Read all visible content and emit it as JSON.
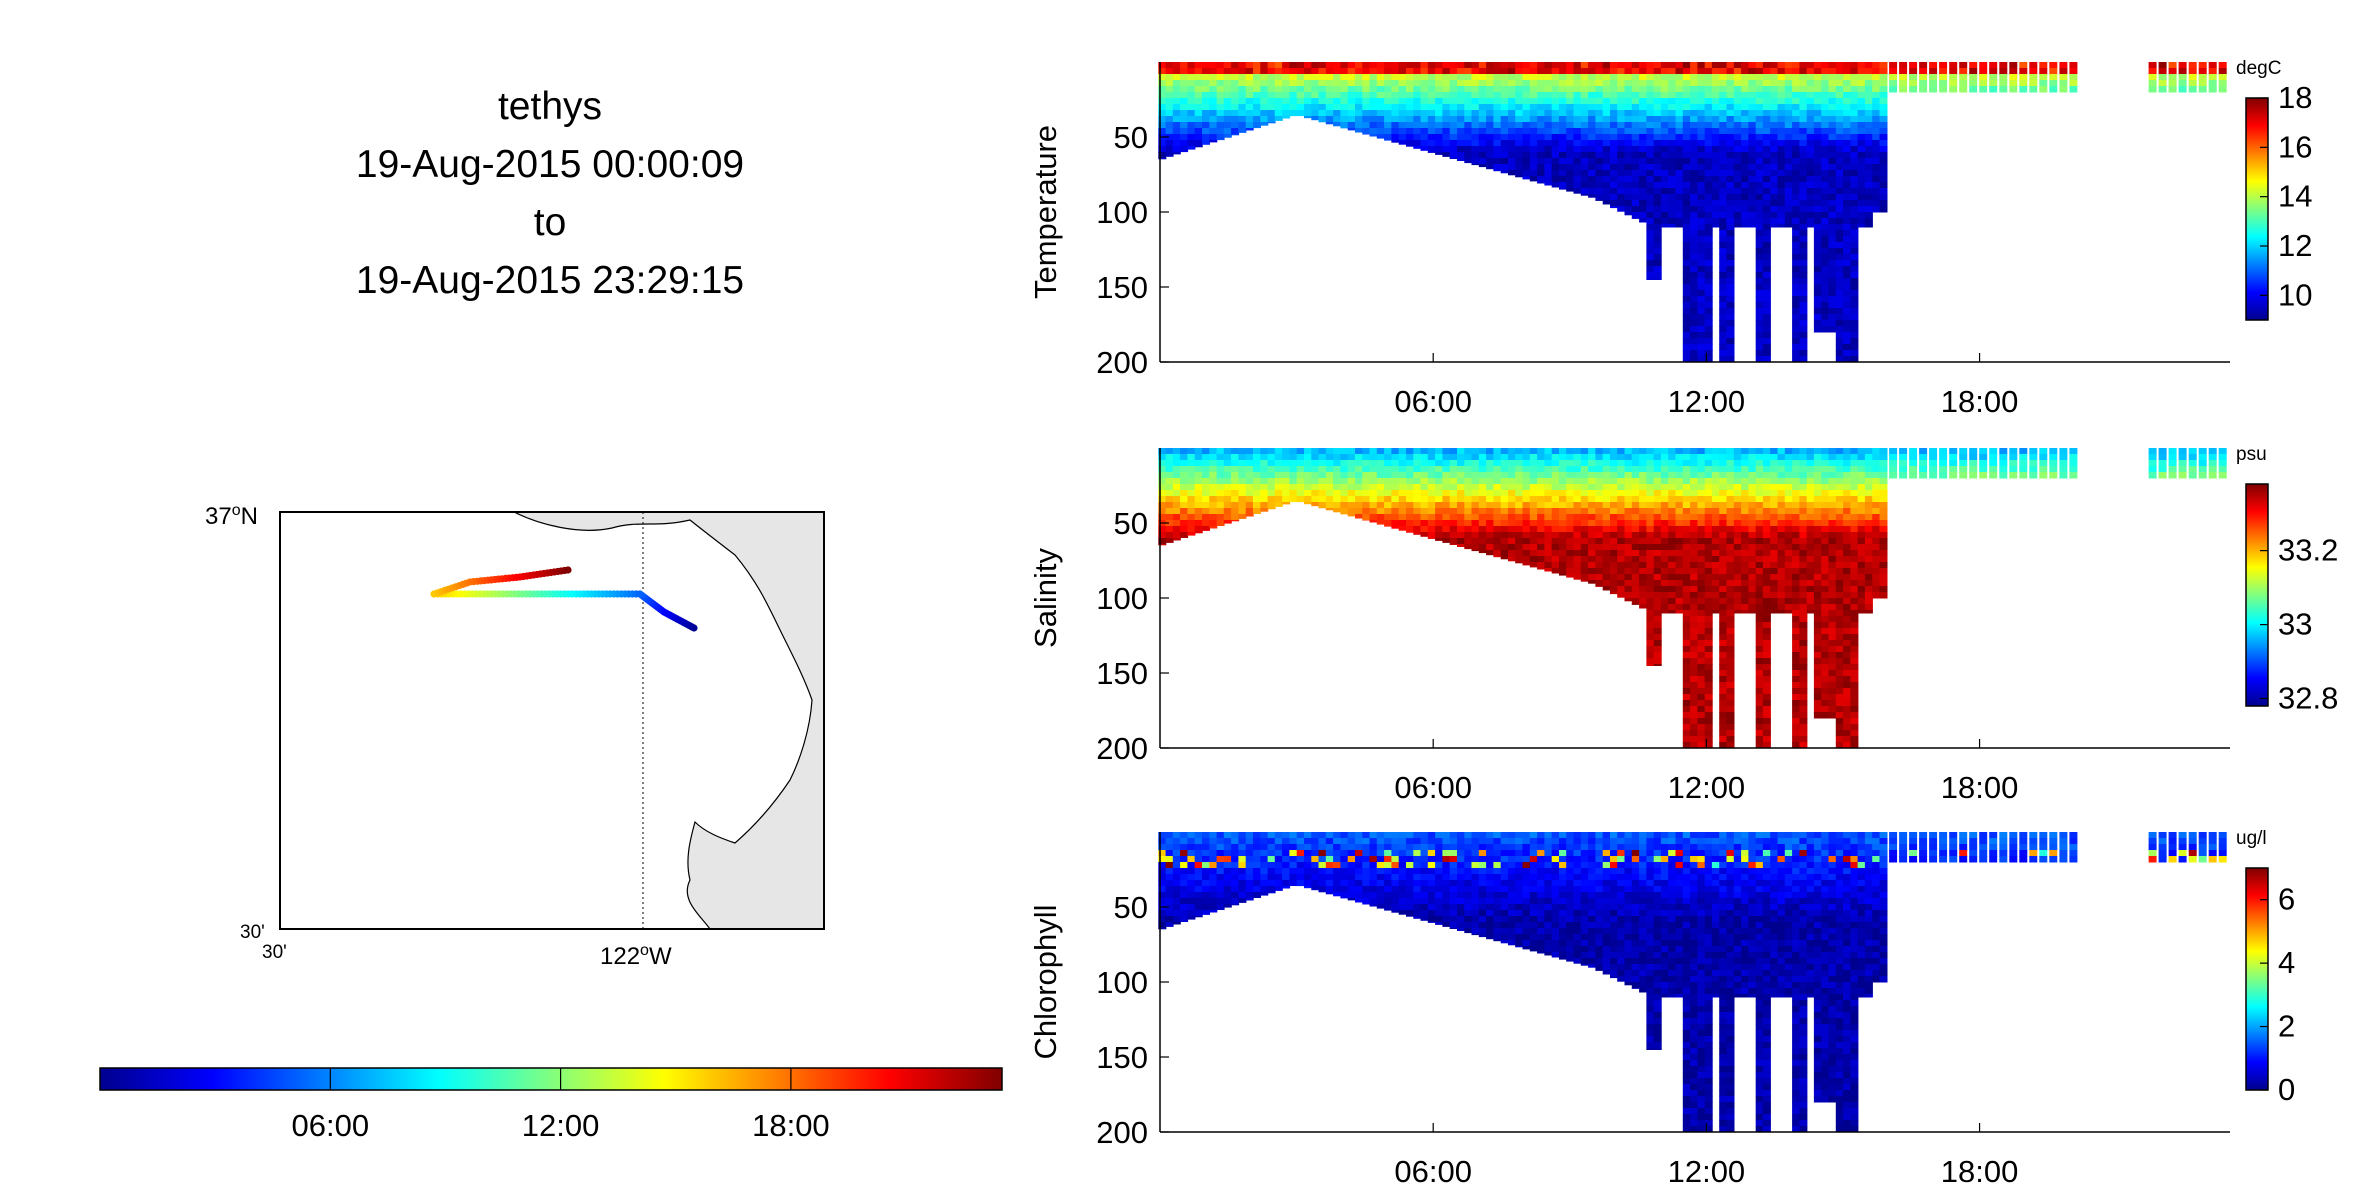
{
  "title": {
    "vehicle": "tethys",
    "start": "19-Aug-2015 00:00:09",
    "connector": "to",
    "end": "19-Aug-2015 23:29:15"
  },
  "colors": {
    "jet": [
      "#00008f",
      "#0000ff",
      "#0080ff",
      "#00ffff",
      "#80ff80",
      "#ffff00",
      "#ff8000",
      "#ff0000",
      "#800000"
    ]
  },
  "map": {
    "lat_top_label": "37°N",
    "lat_top_value": "37",
    "lat_top_sup": "o",
    "lat_top_suffix": "N",
    "lat_bottom_label": "30'",
    "lon_left_label": "30'",
    "lon_mid_label": "122°W",
    "lon_mid_value": "122",
    "lon_mid_sup": "o",
    "lon_mid_suffix": "W"
  },
  "time_colorbar": {
    "tick_labels": [
      "06:00",
      "12:00",
      "18:00"
    ],
    "hours": [
      6,
      12,
      18
    ],
    "range_hours": [
      0,
      23.5
    ]
  },
  "chart_data": [
    {
      "type": "heatmap",
      "ylabel": "Temperature",
      "units": "degC",
      "x_range_hours": [
        0,
        23.5
      ],
      "x_ticks": [
        "06:00",
        "12:00",
        "18:00"
      ],
      "x_tick_hours": [
        6,
        12,
        18
      ],
      "ylim": [
        200,
        0
      ],
      "y_ticks": [
        50,
        100,
        150,
        200
      ],
      "colorbar": {
        "ticks": [
          10,
          12,
          14,
          16,
          18
        ],
        "range": [
          9,
          18
        ]
      },
      "surface_value": 15,
      "deep_value": 9.5
    },
    {
      "type": "heatmap",
      "ylabel": "Salinity",
      "units": "psu",
      "x_range_hours": [
        0,
        23.5
      ],
      "x_ticks": [
        "06:00",
        "12:00",
        "18:00"
      ],
      "x_tick_hours": [
        6,
        12,
        18
      ],
      "ylim": [
        200,
        0
      ],
      "y_ticks": [
        50,
        100,
        150,
        200
      ],
      "colorbar": {
        "ticks": [
          32.8,
          33,
          33.2
        ],
        "range": [
          32.78,
          33.38
        ]
      },
      "surface_value": 32.95,
      "deep_value": 33.35
    },
    {
      "type": "heatmap",
      "ylabel": "Chlorophyll",
      "units": "ug/l",
      "x_range_hours": [
        0,
        23.5
      ],
      "x_ticks": [
        "06:00",
        "12:00",
        "18:00"
      ],
      "x_tick_hours": [
        6,
        12,
        18
      ],
      "ylim": [
        200,
        0
      ],
      "y_ticks": [
        50,
        100,
        150,
        200
      ],
      "colorbar": {
        "ticks": [
          0,
          2,
          4,
          6
        ],
        "range": [
          0,
          7
        ]
      },
      "surface_value": 1.5,
      "deep_value": 0.2
    }
  ]
}
